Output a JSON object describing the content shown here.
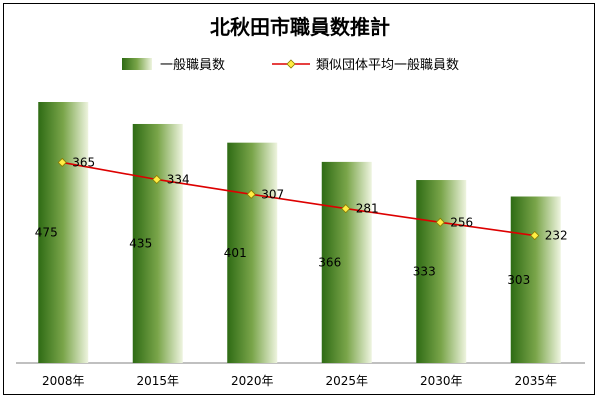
{
  "chart_data": {
    "type": "bar",
    "title": "北秋田市職員数推計",
    "categories": [
      "2008年",
      "2015年",
      "2020年",
      "2025年",
      "2030年",
      "2035年"
    ],
    "series": [
      {
        "name": "一般職員数",
        "kind": "bar",
        "values": [
          475,
          435,
          401,
          366,
          333,
          303
        ]
      },
      {
        "name": "類似団体平均一般職員数",
        "kind": "line",
        "values": [
          365,
          334,
          307,
          281,
          256,
          232
        ]
      }
    ],
    "ylim": [
      0,
      475
    ],
    "grid": false,
    "legend": "top",
    "colors": {
      "bar_dark": "#2e6b14",
      "bar_light": "#eef4df",
      "line": "#dd0000",
      "marker": "#ffee44"
    }
  }
}
